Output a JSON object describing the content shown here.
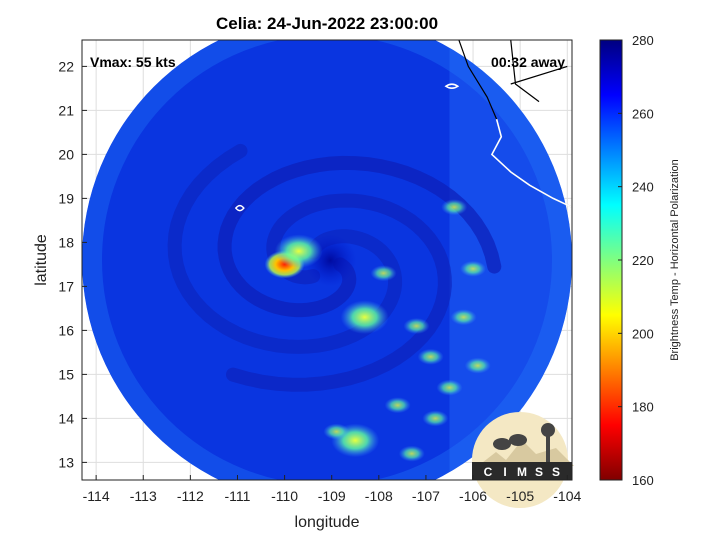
{
  "title": "Celia: 24-Jun-2022 23:00:00",
  "vmax_text": "Vmax: 55 kts",
  "time_away_text": "00:32 away",
  "logo_text": "CIMSS",
  "chart_data": {
    "type": "heatmap",
    "xlabel": "longitude",
    "ylabel": "latitude",
    "xlim": [
      -114.3,
      -103.9
    ],
    "ylim": [
      12.6,
      22.6
    ],
    "xticks": [
      -114,
      -113,
      -112,
      -111,
      -110,
      -109,
      -108,
      -107,
      -106,
      -105,
      -104
    ],
    "yticks": [
      13,
      14,
      15,
      16,
      17,
      18,
      19,
      20,
      21,
      22
    ],
    "grid": true,
    "swath_center": [
      -109.1,
      17.6
    ],
    "storm_center": [
      -109.2,
      17.5
    ],
    "colorbar": {
      "label": "Brightness Temp - Horizontal Polarization",
      "min": 160,
      "max": 280,
      "ticks": [
        160,
        180,
        200,
        220,
        240,
        260,
        280
      ],
      "colors": [
        "#800000",
        "#ff0000",
        "#ff8000",
        "#ffff00",
        "#80ff80",
        "#00ffff",
        "#0080ff",
        "#0000ff",
        "#000080"
      ]
    },
    "features": [
      {
        "name": "warm-spot",
        "lon": -110.0,
        "lat": 17.5,
        "value": 185
      },
      {
        "name": "inner-band",
        "lon": -109.7,
        "lat": 17.8,
        "value": 215
      },
      {
        "name": "outer-band",
        "lon": -108.3,
        "lat": 16.3,
        "value": 225
      },
      {
        "name": "south-band",
        "lon": -108.5,
        "lat": 13.5,
        "value": 225
      }
    ]
  }
}
